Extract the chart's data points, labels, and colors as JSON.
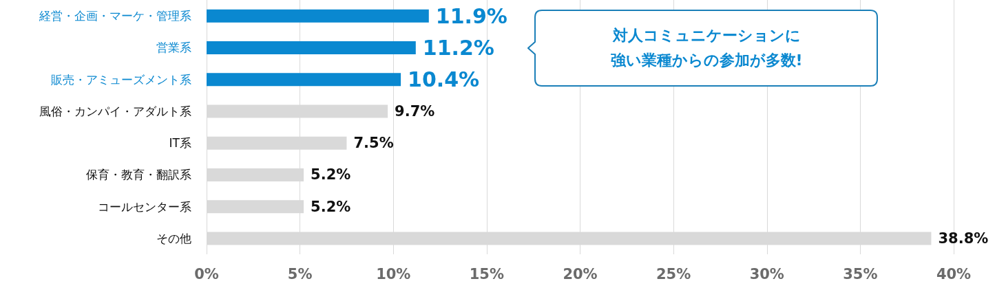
{
  "chart_data": {
    "type": "bar",
    "orientation": "horizontal",
    "categories": [
      "経営・企画・マーケ・管理系",
      "営業系",
      "販売・アミューズメント系",
      "風俗・カンパイ・アダルト系",
      "IT系",
      "保育・教育・翻訳系",
      "コールセンター系",
      "その他"
    ],
    "values": [
      11.9,
      11.2,
      10.4,
      9.7,
      7.5,
      5.2,
      5.2,
      38.8
    ],
    "colors": [
      "#0a88d0",
      "#0a88d0",
      "#0a88d0",
      "#d9d9d9",
      "#d9d9d9",
      "#d9d9d9",
      "#d9d9d9",
      "#d9d9d9"
    ],
    "value_labels": [
      "11.9%",
      "11.2%",
      "10.4%",
      "9.7%",
      "7.5%",
      "5.2%",
      "5.2%",
      "38.8%"
    ],
    "xlim": [
      0,
      40
    ],
    "xticks": [
      {
        "value": 0,
        "label": "0%"
      },
      {
        "value": 5,
        "label": "5%"
      },
      {
        "value": 10,
        "label": "10%"
      },
      {
        "value": 15,
        "label": "15%"
      },
      {
        "value": 20,
        "label": "20%"
      },
      {
        "value": 25,
        "label": "25%"
      },
      {
        "value": 30,
        "label": "30%"
      },
      {
        "value": 35,
        "label": "35%"
      },
      {
        "value": 40,
        "label": "40%"
      }
    ],
    "grid": "x",
    "annotations": [
      "対人コミュニケーションに強い業種からの参加が多数!"
    ]
  }
}
